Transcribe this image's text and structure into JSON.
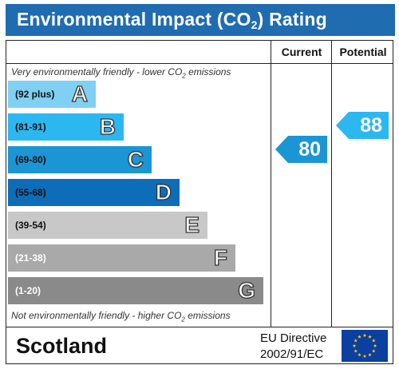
{
  "title": {
    "prefix": "Environmental Impact (CO",
    "sub": "2",
    "suffix": ") Rating"
  },
  "columns": {
    "current": "Current",
    "potential": "Potential"
  },
  "notes": {
    "top": {
      "prefix": "Very environmentally friendly - lower CO",
      "sub": "2",
      "suffix": " emissions"
    },
    "bottom": {
      "prefix": "Not environmentally friendly - higher CO",
      "sub": "2",
      "suffix": " emissions"
    }
  },
  "bands": [
    {
      "range": "(92 plus)",
      "letter": "A",
      "color": "#7fd0f2",
      "range_color": "#111111"
    },
    {
      "range": "(81-91)",
      "letter": "B",
      "color": "#2db7f0",
      "range_color": "#111111"
    },
    {
      "range": "(69-80)",
      "letter": "C",
      "color": "#1b95d4",
      "range_color": "#111111"
    },
    {
      "range": "(55-68)",
      "letter": "D",
      "color": "#0d6db8",
      "range_color": "#111111"
    },
    {
      "range": "(39-54)",
      "letter": "E",
      "color": "#c8c8c8",
      "range_color": "#111111"
    },
    {
      "range": "(21-38)",
      "letter": "F",
      "color": "#a9a9a9",
      "range_color": "#ffffff"
    },
    {
      "range": "(1-20)",
      "letter": "G",
      "color": "#8a8a8a",
      "range_color": "#ffffff"
    }
  ],
  "ratings": {
    "current": {
      "value": "80",
      "color": "#1b95d4"
    },
    "potential": {
      "value": "88",
      "color": "#2db7f0"
    }
  },
  "footer": {
    "country": "Scotland",
    "directive_line1": "EU Directive",
    "directive_line2": "2002/91/EC",
    "flag_color": "#0b3fa0",
    "star_color": "#ffd200"
  }
}
